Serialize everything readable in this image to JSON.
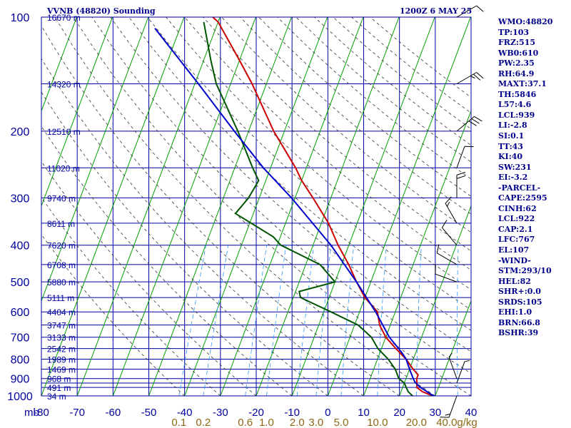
{
  "header": {
    "station": "VVNB (48820) Sounding",
    "time": "1200Z  6 MAY 25"
  },
  "indices": [
    "WMO:48820",
    "TP:103",
    "FRZ:515",
    "WB0:610",
    "PW:2.35",
    "RH:64.9",
    "MAXT:37.1",
    "TH:5846",
    "L57:4.6",
    "LCL:939",
    "LI:-2.8",
    "SI:0.1",
    "TT:43",
    "KI:40",
    "SW:231",
    "EI:-3.2",
    "-PARCEL-",
    "CAPE:2595",
    "CINH:62",
    "LCL:922",
    "CAP:2.1",
    "LFC:767",
    "EL:107",
    "-WIND-",
    "STM:293/10",
    "HEL:82",
    "SHR+:0.0",
    "SRDS:105",
    "EHI:1.0",
    "BRN:66.8",
    "BSHR:39"
  ],
  "colors": {
    "grid": "#0000a0",
    "isotherm": "#00a000",
    "dry_adiabat": "#333333",
    "mixing_ratio": "#3399ff",
    "temperature": "#cc0000",
    "dewpoint": "#005500",
    "parcel": "#0000cc",
    "axis_text": "#0000a0",
    "mixing_text": "#8b6914",
    "header_text": "#00008b"
  },
  "chart_data": {
    "type": "skew-t",
    "xlabel": "",
    "ylabel": "mb",
    "xlim": [
      -80,
      40
    ],
    "ylim": [
      1000,
      100
    ],
    "pressure_ticks": [
      100,
      200,
      300,
      400,
      500,
      600,
      700,
      800,
      900,
      1000
    ],
    "pressure_lines": [
      100,
      150,
      200,
      250,
      300,
      350,
      400,
      450,
      500,
      550,
      600,
      650,
      700,
      750,
      800,
      850,
      900,
      925,
      950,
      1000
    ],
    "temperature_ticks": [
      -80,
      -70,
      -60,
      -50,
      -40,
      -30,
      -20,
      -10,
      0,
      10,
      20,
      30,
      40
    ],
    "height_labels": [
      {
        "p": 100,
        "label": "16670 m"
      },
      {
        "p": 150,
        "label": "14320 m"
      },
      {
        "p": 200,
        "label": "12510 m"
      },
      {
        "p": 250,
        "label": "11020 m"
      },
      {
        "p": 300,
        "label": "9740 m"
      },
      {
        "p": 350,
        "label": "8611 m"
      },
      {
        "p": 400,
        "label": "7620 m"
      },
      {
        "p": 450,
        "label": "6708 m"
      },
      {
        "p": 500,
        "label": "5880 m"
      },
      {
        "p": 550,
        "label": "5111 m"
      },
      {
        "p": 600,
        "label": "4404 m"
      },
      {
        "p": 650,
        "label": "3747 m"
      },
      {
        "p": 700,
        "label": "3133 m"
      },
      {
        "p": 750,
        "label": "2542 m"
      },
      {
        "p": 800,
        "label": "1989 m"
      },
      {
        "p": 850,
        "label": "1469 m"
      },
      {
        "p": 900,
        "label": "968 m"
      },
      {
        "p": 950,
        "label": "491 m"
      },
      {
        "p": 1000,
        "label": "34 m"
      }
    ],
    "mixing_ratio_labels": [
      {
        "value": 0.1,
        "label": "0.1"
      },
      {
        "value": 0.2,
        "label": "0.2"
      },
      {
        "value": 0.6,
        "label": "0.6"
      },
      {
        "value": 1.0,
        "label": "1.0"
      },
      {
        "value": 2.0,
        "label": "2.0"
      },
      {
        "value": 3.0,
        "label": "3.0"
      },
      {
        "value": 5.0,
        "label": "5.0"
      },
      {
        "value": 10.0,
        "label": "10.0"
      },
      {
        "value": 20.0,
        "label": "20.0"
      },
      {
        "value": 40.0,
        "label": "40.0"
      }
    ],
    "mixing_units": "g/kg",
    "series": [
      {
        "role": "temperature",
        "points": [
          [
            1005,
            30
          ],
          [
            990,
            28
          ],
          [
            975,
            26
          ],
          [
            950,
            24
          ],
          [
            925,
            23.5
          ],
          [
            900,
            23
          ],
          [
            880,
            23
          ],
          [
            850,
            21
          ],
          [
            800,
            18
          ],
          [
            750,
            14
          ],
          [
            700,
            10
          ],
          [
            650,
            7
          ],
          [
            600,
            5
          ],
          [
            550,
            0
          ],
          [
            500,
            -4
          ],
          [
            450,
            -8
          ],
          [
            400,
            -13
          ],
          [
            350,
            -18
          ],
          [
            300,
            -25
          ],
          [
            270,
            -30
          ],
          [
            250,
            -33
          ],
          [
            200,
            -43
          ],
          [
            150,
            -54
          ],
          [
            130,
            -60
          ],
          [
            103,
            -70
          ],
          [
            100,
            -72
          ]
        ]
      },
      {
        "role": "dewpoint",
        "points": [
          [
            1005,
            24
          ],
          [
            990,
            23
          ],
          [
            975,
            22
          ],
          [
            950,
            21
          ],
          [
            925,
            20
          ],
          [
            900,
            18
          ],
          [
            850,
            16
          ],
          [
            800,
            13
          ],
          [
            750,
            9
          ],
          [
            700,
            6
          ],
          [
            650,
            1
          ],
          [
            600,
            -8
          ],
          [
            550,
            -18
          ],
          [
            530,
            -19
          ],
          [
            500,
            -10
          ],
          [
            450,
            -16
          ],
          [
            400,
            -29
          ],
          [
            380,
            -32
          ],
          [
            330,
            -45
          ],
          [
            300,
            -43
          ],
          [
            270,
            -42
          ],
          [
            250,
            -45
          ],
          [
            200,
            -53
          ],
          [
            150,
            -64
          ],
          [
            130,
            -68
          ],
          [
            103,
            -74
          ]
        ]
      },
      {
        "role": "parcel",
        "points": [
          [
            1005,
            30
          ],
          [
            950,
            25
          ],
          [
            922,
            23
          ],
          [
            900,
            22
          ],
          [
            850,
            20
          ],
          [
            800,
            18
          ],
          [
            767,
            16
          ],
          [
            700,
            11
          ],
          [
            600,
            4.5
          ],
          [
            500,
            -4
          ],
          [
            400,
            -15
          ],
          [
            300,
            -31
          ],
          [
            250,
            -42
          ],
          [
            200,
            -54
          ],
          [
            150,
            -69
          ],
          [
            107,
            -87
          ]
        ]
      }
    ],
    "wind_barbs": [
      {
        "p": 100,
        "dir": 60,
        "spd": 10
      },
      {
        "p": 150,
        "dir": 60,
        "spd": 25
      },
      {
        "p": 200,
        "dir": 50,
        "spd": 30
      },
      {
        "p": 250,
        "dir": 20,
        "spd": 10
      },
      {
        "p": 300,
        "dir": 0,
        "spd": 20
      },
      {
        "p": 350,
        "dir": 330,
        "spd": 15
      },
      {
        "p": 400,
        "dir": 320,
        "spd": 10
      },
      {
        "p": 450,
        "dir": 300,
        "spd": 10
      },
      {
        "p": 500,
        "dir": 290,
        "spd": 10
      },
      {
        "p": 900,
        "dir": 340,
        "spd": 5
      },
      {
        "p": 925,
        "dir": 20,
        "spd": 5
      },
      {
        "p": 1000,
        "dir": 200,
        "spd": 15
      }
    ]
  }
}
